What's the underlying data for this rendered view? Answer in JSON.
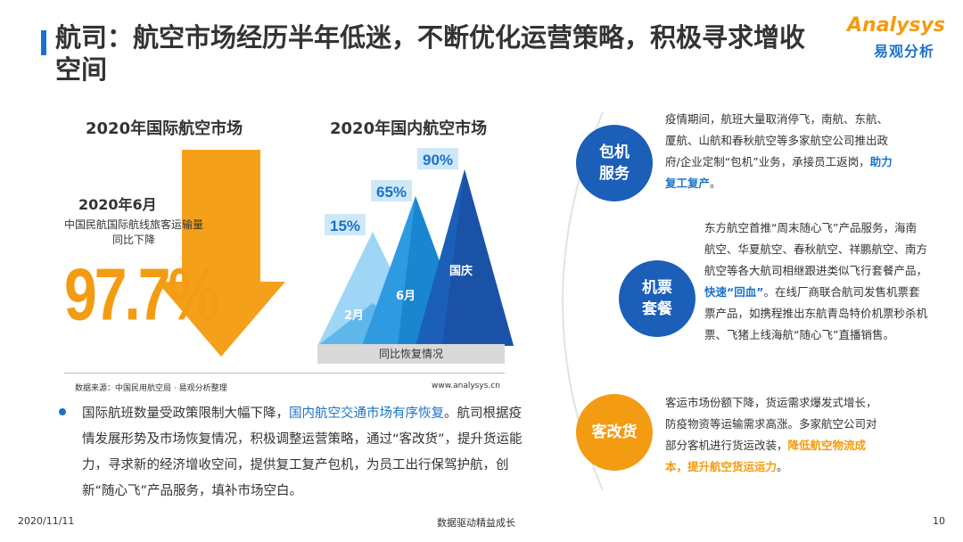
{
  "title": "航司：航空市场经历半年低迷，不断优化运营策略，积极寻求增收空间",
  "logo": {
    "en": "Analysys",
    "cn": "易观分析"
  },
  "intl": {
    "heading": "2020年国际航空市场",
    "month": "2020年6月",
    "desc": "中国民航国际航线旅客运输量同比下降",
    "value": "97.7%"
  },
  "domestic": {
    "heading": "2020年国内航空市场",
    "caption": "同比恢复情况",
    "peaks": [
      {
        "label": "2月",
        "pct": "15%",
        "recovery": 0.15
      },
      {
        "label": "6月",
        "pct": "65%",
        "recovery": 0.65
      },
      {
        "label": "国庆",
        "pct": "90%",
        "recovery": 0.9
      }
    ]
  },
  "source": "数据来源：中国民用航空局 · 易观分析整理",
  "site": "www.analysys.cn",
  "summary": {
    "p1": "国际航班数量受政策限制大幅下降，",
    "p1_hl": "国内航空交通市场有序恢复",
    "p2": "。航司根据疫情发展形势及市场恢复情况，积极调整运营策略，通过“客改货”，提升货运能力，寻求新的经济增收空间，提供复工复产包机，为员工出行保驾护航，创新“随心飞”产品服务，填补市场空白。"
  },
  "strategies": [
    {
      "label": "包机服务",
      "text": "疫情期间，航班大量取消停飞，南航、东航、厦航、山航和春秋航空等多家航空公司推出政府/企业定制“包机”业务，承接员工返岗，",
      "highlight": "助力复工复产",
      "tail": "。"
    },
    {
      "label": "机票套餐",
      "text": "东方航空首推“周末随心飞”产品服务，海南航空、华夏航空、春秋航空、祥鹏航空、南方航空等各大航司相继跟进类似飞行套餐产品，",
      "highlight": "快速“回血”",
      "tail": "。在线厂商联合航司发售机票套票产品，如携程推出东航青岛特价机票秒杀机票、飞猪上线海航“随心飞”直播销售。"
    },
    {
      "label": "客改货",
      "text": "客运市场份额下降，货运需求爆发式增长，防疫物资等运输需求高涨。多家航空公司对部分客机进行货运改装，",
      "highlight": "降低航空物流成本，提升航空货运运力",
      "tail": "。"
    }
  ],
  "footer": {
    "date": "2020/11/11",
    "slogan": "数据驱动精益成长",
    "page": "10"
  },
  "colors": {
    "blue": "#1b5fb8",
    "orange": "#f39c12",
    "light_blue": "#7cc4f0"
  }
}
